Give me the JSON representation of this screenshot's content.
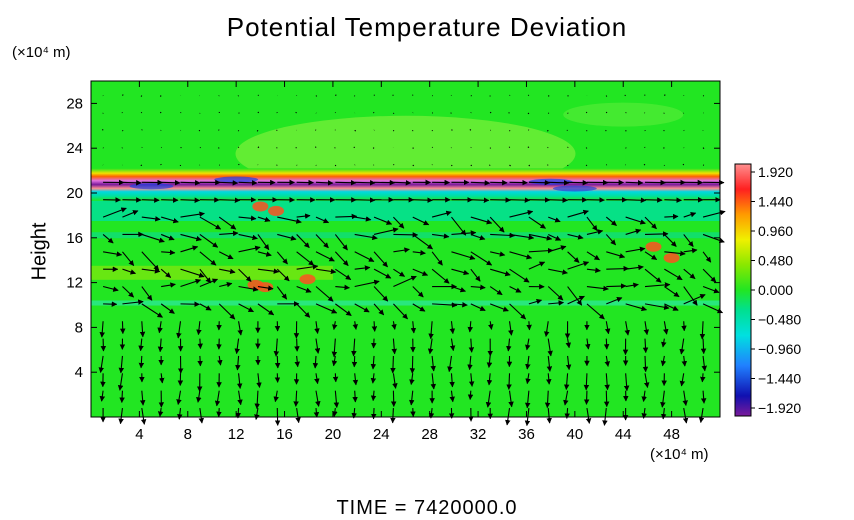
{
  "chart_data": {
    "type": "heatmap",
    "title": "Potential Temperature Deviation",
    "ylabel": "Height",
    "y_unit": "(×10⁴ m)",
    "x_unit": "(×10⁴ m)",
    "footer": "TIME  =  7420000.0",
    "xlim": [
      0,
      52
    ],
    "ylim": [
      0,
      30
    ],
    "xticks": [
      4,
      8,
      12,
      16,
      20,
      24,
      28,
      32,
      36,
      40,
      44,
      48
    ],
    "yticks": [
      4,
      8,
      12,
      16,
      20,
      24,
      28
    ],
    "colorbar": {
      "min": -1.92,
      "max": 1.92,
      "ticks": [
        "1.920",
        "1.440",
        "0.960",
        "0.480",
        "0.000",
        "−0.480",
        "−0.960",
        "−1.440",
        "−1.920"
      ]
    },
    "overlay": "wind vectors"
  }
}
